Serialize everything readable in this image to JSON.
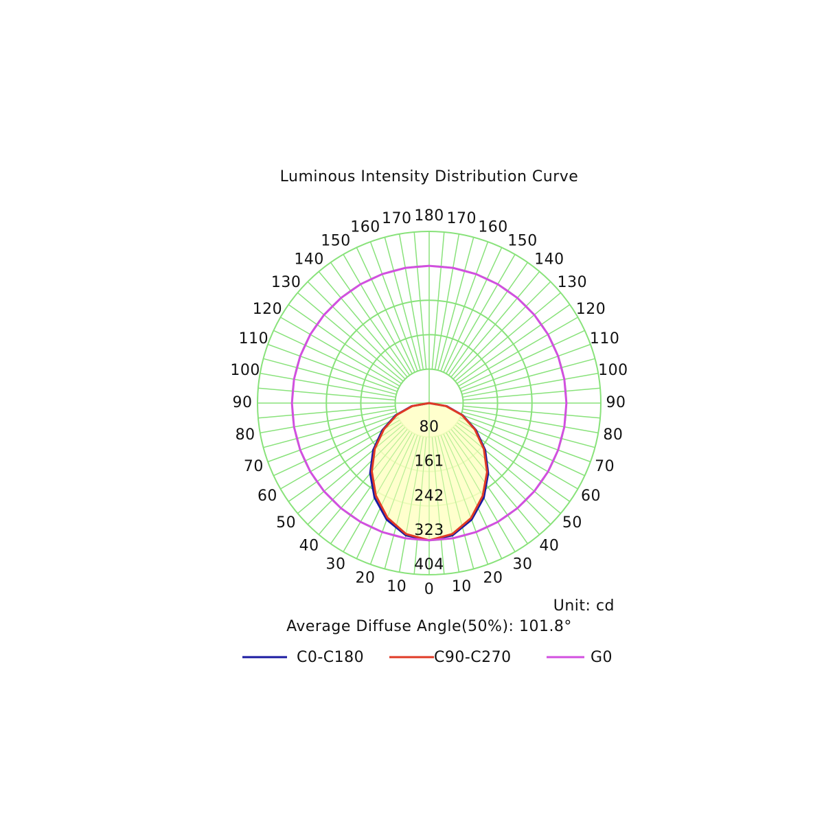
{
  "chart_data": {
    "type": "polar",
    "title": "Luminous Intensity Distribution Curve",
    "unit": "Unit: cd",
    "annotation": "Average Diffuse Angle(50%): 101.8°",
    "x": [
      -180,
      -170,
      -160,
      -150,
      -140,
      -130,
      -120,
      -110,
      -100,
      -90,
      -80,
      -70,
      -60,
      -50,
      -40,
      -30,
      -20,
      -10,
      0,
      10,
      20,
      30,
      40,
      50,
      60,
      70,
      80,
      90,
      100,
      110,
      120,
      130,
      140,
      150,
      160,
      170,
      180
    ],
    "series": [
      {
        "name": "C0-C180",
        "color": "#1a1aa0",
        "values": [
          null,
          null,
          null,
          null,
          null,
          null,
          null,
          null,
          null,
          0,
          42,
          84,
          127,
          172,
          216,
          257,
          292,
          316,
          323,
          316,
          292,
          257,
          216,
          172,
          127,
          84,
          42,
          0,
          null,
          null,
          null,
          null,
          null,
          null,
          null,
          null,
          null
        ]
      },
      {
        "name": "C90-C270",
        "color": "#e03a25",
        "values": [
          null,
          null,
          null,
          null,
          null,
          null,
          null,
          null,
          null,
          0,
          40,
          81,
          123,
          167,
          210,
          251,
          287,
          313,
          323,
          313,
          288,
          252,
          212,
          168,
          124,
          82,
          40,
          0,
          null,
          null,
          null,
          null,
          null,
          null,
          null,
          null,
          null
        ]
      },
      {
        "name": "G0",
        "color": "#d24fe0",
        "values": [
          323,
          323,
          323,
          323,
          323,
          323,
          323,
          323,
          323,
          323,
          323,
          323,
          323,
          323,
          323,
          323,
          323,
          323,
          323,
          323,
          323,
          323,
          323,
          323,
          323,
          323,
          323,
          323,
          323,
          323,
          323,
          323,
          323,
          323,
          323,
          323,
          323
        ]
      }
    ],
    "fill_color": "#ffffc4",
    "grid_color": "#88e27a",
    "ylim": [
      0,
      404
    ],
    "yticks": [
      80,
      161,
      242,
      323,
      404
    ],
    "xticks": [
      {
        "value": -170,
        "label": "170"
      },
      {
        "value": -160,
        "label": "160"
      },
      {
        "value": -150,
        "label": "150"
      },
      {
        "value": -140,
        "label": "140"
      },
      {
        "value": -130,
        "label": "130"
      },
      {
        "value": -120,
        "label": "120"
      },
      {
        "value": -110,
        "label": "110"
      },
      {
        "value": -100,
        "label": "100"
      },
      {
        "value": -90,
        "label": "90"
      },
      {
        "value": -80,
        "label": "80"
      },
      {
        "value": -70,
        "label": "70"
      },
      {
        "value": -60,
        "label": "60"
      },
      {
        "value": -50,
        "label": "50"
      },
      {
        "value": -40,
        "label": "40"
      },
      {
        "value": -30,
        "label": "30"
      },
      {
        "value": -20,
        "label": "20"
      },
      {
        "value": -10,
        "label": "10"
      },
      0,
      10,
      20,
      30,
      40,
      50,
      60,
      70,
      80,
      90,
      100,
      110,
      120,
      130,
      140,
      150,
      160,
      170,
      180
    ]
  }
}
